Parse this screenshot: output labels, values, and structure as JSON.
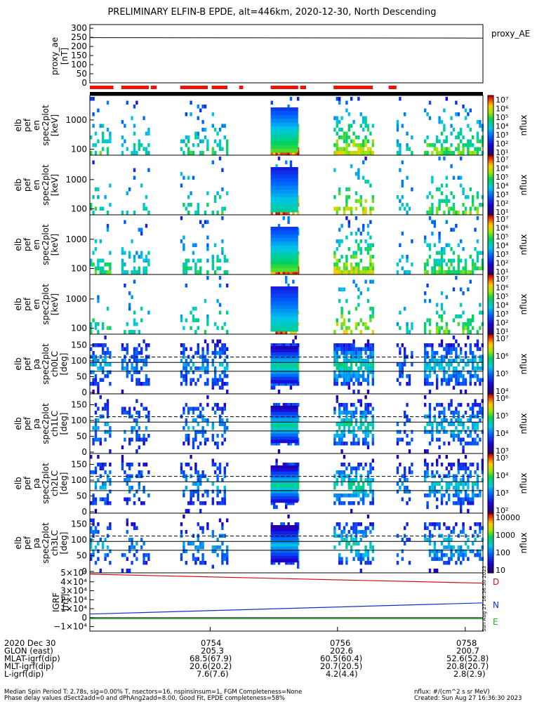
{
  "title": "PRELIMINARY ELFIN-B EPDE, alt=446km, 2020-12-30, North Descending",
  "colors": {
    "red_bar": "#e8140c",
    "black_bar": "#000000",
    "flux_high": "#d00000",
    "flux_mid": "#00d060",
    "flux_low": "#30009a",
    "igrf_d": "#d01010",
    "igrf_n": "#1030d0",
    "igrf_e": "#20b020"
  },
  "chart_data": [
    {
      "type": "line",
      "name": "proxy_ae",
      "ylabel": [
        "proxy_ae",
        "[nT]"
      ],
      "yticks": [
        "300",
        "250",
        "200",
        "150",
        "100",
        "50",
        "0"
      ],
      "ylim": [
        0,
        320
      ],
      "legend": "proxy_AE",
      "x": [
        0,
        1
      ],
      "values": [
        248,
        246
      ]
    },
    {
      "type": "heatmap",
      "name": "energy-spectrogram-1",
      "ylabel": [
        "elb",
        "pef",
        "en",
        "spec2plot",
        "[keV]"
      ],
      "yticks": [
        "1000",
        "100"
      ],
      "scale": "log",
      "colorbar": {
        "label": "nflux",
        "ticks": [
          "10⁷",
          "10⁶",
          "10⁵",
          "10⁴",
          "10³",
          "10²",
          "10¹"
        ]
      }
    },
    {
      "type": "heatmap",
      "name": "energy-spectrogram-2",
      "ylabel": [
        "elb",
        "pef",
        "en",
        "spec2plot",
        "[keV]"
      ],
      "yticks": [
        "1000",
        "100"
      ],
      "scale": "log",
      "colorbar": {
        "label": "nflux",
        "ticks": [
          "10⁷",
          "10⁶",
          "10⁵",
          "10⁴",
          "10³",
          "10²",
          "10¹"
        ]
      }
    },
    {
      "type": "heatmap",
      "name": "energy-spectrogram-3",
      "ylabel": [
        "elb",
        "pef",
        "en",
        "spec2plot",
        "[keV]"
      ],
      "yticks": [
        "1000",
        "100"
      ],
      "scale": "log",
      "colorbar": {
        "label": "nflux",
        "ticks": [
          "10⁷",
          "10⁶",
          "10⁵",
          "10⁴",
          "10³",
          "10²",
          "10¹"
        ]
      }
    },
    {
      "type": "heatmap",
      "name": "energy-spectrogram-4",
      "ylabel": [
        "elb",
        "pef",
        "en",
        "spec2plot",
        "[keV]"
      ],
      "yticks": [
        "1000",
        "100"
      ],
      "scale": "log",
      "colorbar": {
        "label": "nflux",
        "ticks": [
          "10⁷",
          "10⁶",
          "10⁵",
          "10⁴",
          "10³",
          "10²",
          "10¹"
        ]
      }
    },
    {
      "type": "heatmap",
      "name": "pitch-angle-ch0",
      "ylabel": [
        "elb",
        "pef",
        "pa",
        "spec2plot",
        "ch0LC",
        "[deg]"
      ],
      "yticks": [
        "150",
        "100",
        "50",
        "0"
      ],
      "ylim": [
        0,
        180
      ],
      "colorbar": {
        "label": "nflux",
        "ticks": [
          "10⁷",
          "10⁶",
          "10⁵",
          "10⁴"
        ]
      }
    },
    {
      "type": "heatmap",
      "name": "pitch-angle-ch1",
      "ylabel": [
        "elb",
        "pef",
        "pa",
        "spec2plot",
        "ch1LC",
        "[deg]"
      ],
      "yticks": [
        "150",
        "100",
        "50",
        "0"
      ],
      "ylim": [
        0,
        180
      ],
      "colorbar": {
        "label": "nflux",
        "ticks": [
          "10⁶",
          "10⁵",
          "10⁴",
          "10³"
        ]
      }
    },
    {
      "type": "heatmap",
      "name": "pitch-angle-ch2",
      "ylabel": [
        "elb",
        "pef",
        "pa",
        "spec2plot",
        "ch2LC",
        "[deg]"
      ],
      "yticks": [
        "150",
        "100",
        "50",
        "0"
      ],
      "ylim": [
        0,
        180
      ],
      "colorbar": {
        "label": "nflux",
        "ticks": [
          "10⁵",
          "10⁴",
          "10³",
          "10²"
        ]
      }
    },
    {
      "type": "heatmap",
      "name": "pitch-angle-ch3",
      "ylabel": [
        "elb",
        "pef",
        "pa",
        "spec2plot",
        "ch3LC",
        "[deg]"
      ],
      "yticks": [
        "150",
        "100",
        "50",
        "0"
      ],
      "ylim": [
        0,
        180
      ],
      "colorbar": {
        "label": "nflux",
        "ticks": [
          "10000",
          "1000",
          "100",
          "10"
        ]
      }
    },
    {
      "type": "line",
      "name": "igrf",
      "ylabel": [
        "IGRF",
        "[nT]"
      ],
      "yticks": [
        "5×10⁴",
        "4×10⁴",
        "3×10⁴",
        "2×10⁴",
        "1×10⁴",
        "0",
        "−1×10⁴"
      ],
      "ylim": [
        -15000,
        50000
      ],
      "x": [
        0,
        1
      ],
      "series": [
        {
          "name": "D",
          "values": [
            48500,
            38500
          ]
        },
        {
          "name": "N",
          "values": [
            4000,
            16500
          ]
        },
        {
          "name": "E",
          "values": [
            -1200,
            -1200
          ]
        }
      ]
    }
  ],
  "timestamp_vertical": "Sun Aug 27 16:36:30 2023",
  "table": {
    "rows": [
      [
        "2020 Dec 30",
        "0754",
        "0756",
        "0758"
      ],
      [
        "GLON (east)",
        "205.3",
        "202.6",
        "200.7"
      ],
      [
        "MLAT-igrf(dip)",
        "68.5(67.9)",
        "60.5(60.4)",
        "52.6(52.8)"
      ],
      [
        "MLT-igrf(dip)",
        "20.6(20.2)",
        "20.7(20.5)",
        "20.8(20.7)"
      ],
      [
        "L-igrf(dip)",
        "7.6(7.6)",
        "4.2(4.4)",
        "2.8(2.9)"
      ]
    ]
  },
  "footer": {
    "line1": "Median Spin Period T: 2.78s, sig=0.00% T, nsectors=16, nspinsinsum=1, FGM Completeness=None",
    "line2": "Phase delay values dSect2add=0 and dPhAng2add=8.00, Good Fit, EPDE completeness=58%",
    "line3": "nflux: #/(cm^2 s sr MeV)",
    "line4": "Created: Sun Aug 27 16:36:30 2023"
  }
}
